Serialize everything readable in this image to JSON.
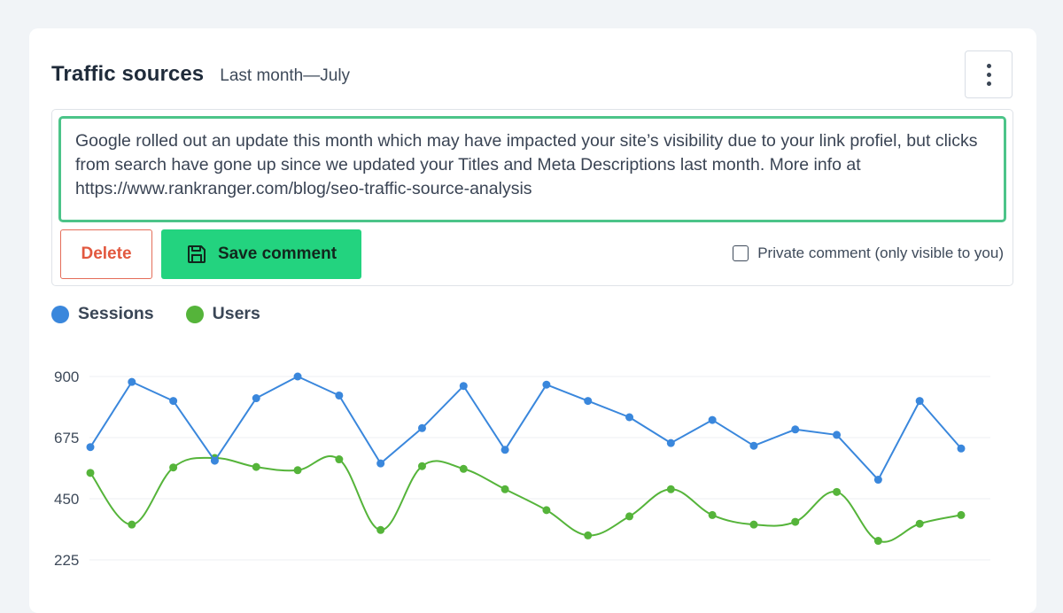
{
  "widget": {
    "title": "Traffic sources",
    "subtitle": "Last month—July",
    "menu_icon": "more-vertical-icon"
  },
  "comment": {
    "text": "Google rolled out an update this month which may have impacted your site’s visibility due to your link profiel, but clicks from search have gone up since we updated your Titles and Meta Descriptions last month. More info at https://www.rankranger.com/blog/seo-traffic-source-analysis",
    "delete_label": "Delete",
    "save_label": "Save comment",
    "save_icon": "floppy-disk-icon",
    "private_label": "Private comment (only visible to you)",
    "private_checked": false
  },
  "colors": {
    "sessions": "#3a87dc",
    "users": "#55b43a",
    "accent_border": "#4cc489",
    "save_button": "#23d37f",
    "delete": "#e2583f"
  },
  "chart_data": {
    "type": "line",
    "legend_position": "top-left",
    "grid": true,
    "ylim": [
      225,
      900
    ],
    "yticks": [
      900,
      675,
      450,
      225
    ],
    "series": [
      {
        "name": "Sessions",
        "color": "#3a87dc",
        "smooth": false,
        "values": [
          640,
          880,
          810,
          590,
          820,
          900,
          830,
          580,
          710,
          865,
          630,
          870,
          810,
          750,
          655,
          740,
          645,
          705,
          685,
          520,
          810,
          635
        ]
      },
      {
        "name": "Users",
        "color": "#55b43a",
        "smooth": true,
        "values": [
          545,
          355,
          565,
          600,
          567,
          555,
          595,
          335,
          570,
          560,
          485,
          408,
          315,
          385,
          485,
          390,
          355,
          365,
          475,
          295,
          358,
          390
        ]
      }
    ]
  }
}
